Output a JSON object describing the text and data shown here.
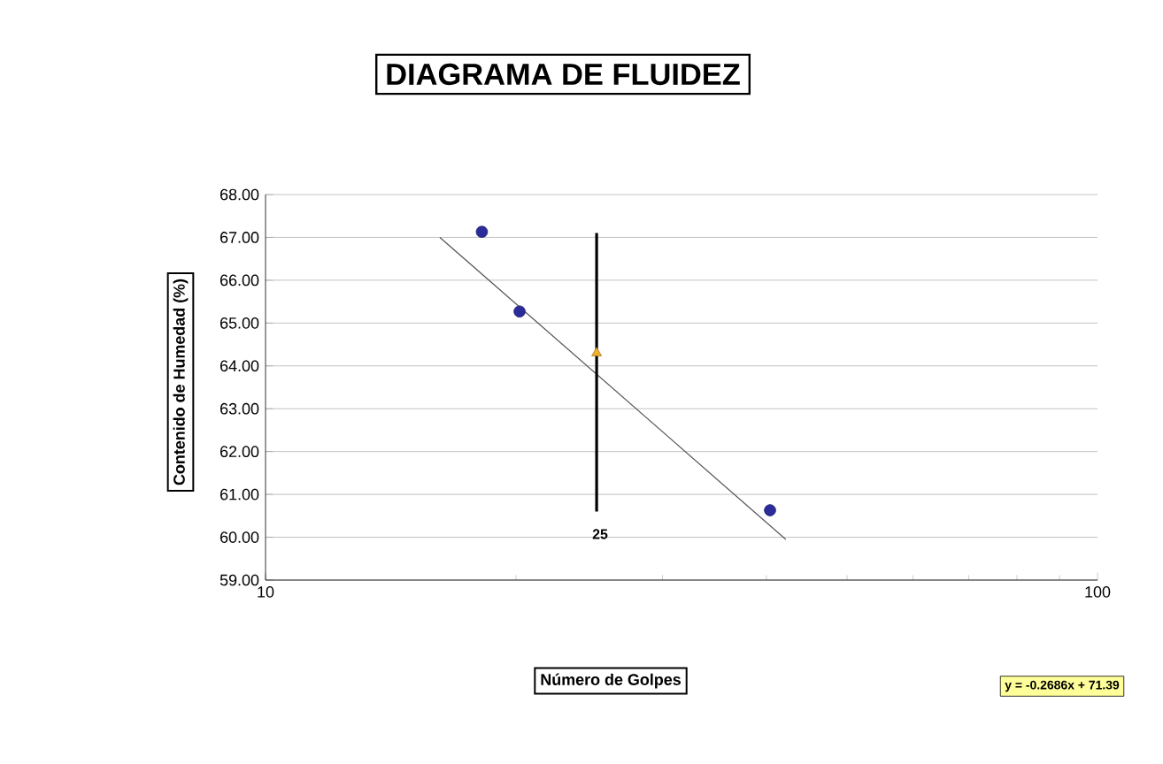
{
  "chart_data": {
    "type": "scatter",
    "title": "DIAGRAMA DE FLUIDEZ",
    "xlabel": "Número de Golpes",
    "ylabel": "Contenido de Humedad (%)",
    "log": "x",
    "grid": "y",
    "xlim": [
      10,
      100
    ],
    "xticks": [
      10,
      100
    ],
    "ylim": [
      59,
      68
    ],
    "yticks": [
      {
        "value": 59,
        "label": "59.00"
      },
      {
        "value": 60,
        "label": "60.00"
      },
      {
        "value": 61,
        "label": "61.00"
      },
      {
        "value": 62,
        "label": "62.00"
      },
      {
        "value": 63,
        "label": "63.00"
      },
      {
        "value": 64,
        "label": "64.00"
      },
      {
        "value": 65,
        "label": "65.00"
      },
      {
        "value": 66,
        "label": "66.00"
      },
      {
        "value": 67,
        "label": "67.00"
      },
      {
        "value": 68,
        "label": "68.00"
      }
    ],
    "series": [
      {
        "color": "#2b2b9a",
        "marker": "circle",
        "x": [
          18.2,
          20.2,
          40.4
        ],
        "values": [
          67.13,
          65.27,
          60.63
        ]
      },
      {
        "color": "#f0b030",
        "marker": "triangle",
        "x": [
          25
        ],
        "values": [
          64.3
        ]
      },
      {
        "type": "line",
        "color": "#555555",
        "marker": "none",
        "line_style": "solid",
        "x": [
          16.2,
          42.2
        ],
        "values": [
          67.0,
          59.95
        ]
      },
      {
        "type": "line",
        "color": "#000000",
        "marker": "none",
        "line_style": "solid",
        "x": [
          25,
          25
        ],
        "values": [
          60.6,
          67.1
        ]
      }
    ],
    "annotations": [
      "25",
      "y = -0.2686x + 71.39"
    ]
  }
}
